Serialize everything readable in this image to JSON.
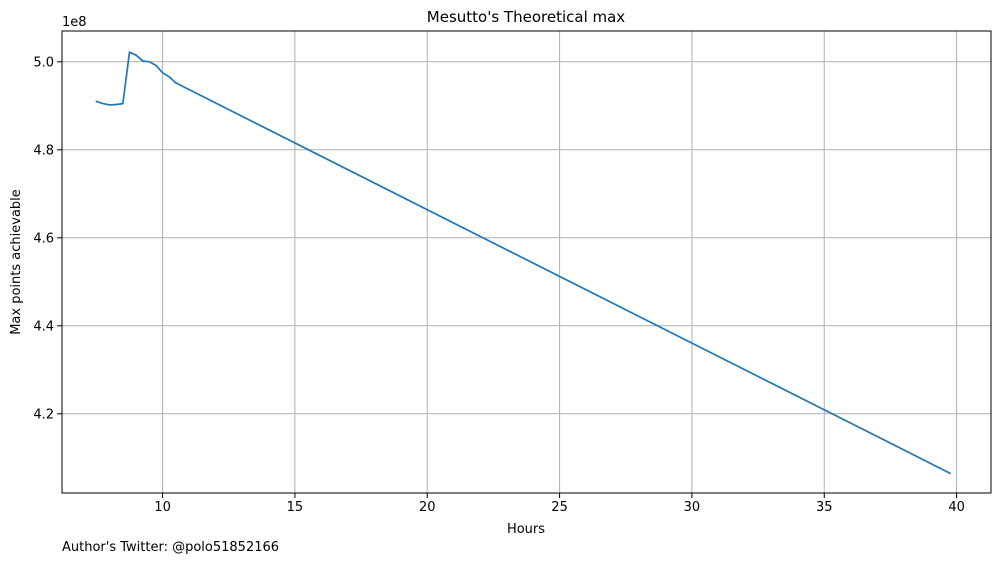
{
  "footer": {
    "author": "Author's Twitter: @polo51852166"
  },
  "chart_data": {
    "type": "line",
    "title": "Mesutto's Theoretical max",
    "xlabel": "Hours",
    "ylabel": "Max points achievable",
    "y_offset_label": "1e8",
    "xlim": [
      6.2,
      41.3
    ],
    "ylim": [
      402000000,
      507000000
    ],
    "x_ticks": [
      10,
      15,
      20,
      25,
      30,
      35,
      40
    ],
    "y_ticks": [
      420000000,
      440000000,
      460000000,
      480000000,
      500000000
    ],
    "y_tick_labels": [
      "4.2",
      "4.4",
      "4.6",
      "4.8",
      "5.0"
    ],
    "grid": true,
    "series": [
      {
        "color": "#1f77b4",
        "x": [
          7.5,
          7.75,
          8.0,
          8.25,
          8.5,
          8.75,
          9.0,
          9.25,
          9.5,
          9.75,
          10.0,
          10.25,
          10.5,
          39.75
        ],
        "y": [
          491000000,
          490500000,
          490200000,
          490300000,
          490500000,
          502200000,
          501500000,
          500200000,
          500000000,
          499200000,
          497500000,
          496600000,
          495200000,
          406500000
        ]
      }
    ]
  }
}
